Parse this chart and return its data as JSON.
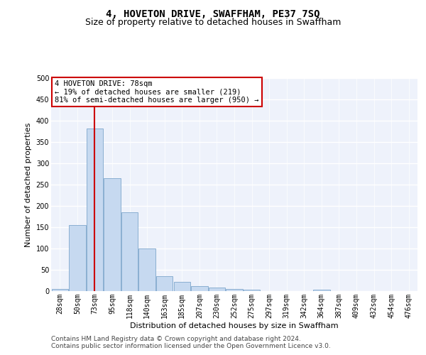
{
  "title": "4, HOVETON DRIVE, SWAFFHAM, PE37 7SQ",
  "subtitle": "Size of property relative to detached houses in Swaffham",
  "xlabel": "Distribution of detached houses by size in Swaffham",
  "ylabel": "Number of detached properties",
  "bar_color": "#c6d9f0",
  "bar_edgecolor": "#7da6cc",
  "categories": [
    "28sqm",
    "50sqm",
    "73sqm",
    "95sqm",
    "118sqm",
    "140sqm",
    "163sqm",
    "185sqm",
    "207sqm",
    "230sqm",
    "252sqm",
    "275sqm",
    "297sqm",
    "319sqm",
    "342sqm",
    "364sqm",
    "387sqm",
    "409sqm",
    "432sqm",
    "454sqm",
    "476sqm"
  ],
  "values": [
    5,
    155,
    382,
    265,
    185,
    100,
    35,
    22,
    12,
    8,
    5,
    3,
    0,
    0,
    0,
    3,
    0,
    0,
    0,
    0,
    0
  ],
  "ylim": [
    0,
    500
  ],
  "yticks": [
    0,
    50,
    100,
    150,
    200,
    250,
    300,
    350,
    400,
    450,
    500
  ],
  "vline_x": 2.0,
  "vline_color": "#cc0000",
  "annotation_text": "4 HOVETON DRIVE: 78sqm\n← 19% of detached houses are smaller (219)\n81% of semi-detached houses are larger (950) →",
  "annotation_box_color": "#ffffff",
  "annotation_box_edgecolor": "#cc0000",
  "footer1": "Contains HM Land Registry data © Crown copyright and database right 2024.",
  "footer2": "Contains public sector information licensed under the Open Government Licence v3.0.",
  "background_color": "#eef2fb",
  "grid_color": "#ffffff",
  "title_fontsize": 10,
  "subtitle_fontsize": 9,
  "axis_label_fontsize": 8,
  "tick_fontsize": 7,
  "annotation_fontsize": 7.5,
  "footer_fontsize": 6.5
}
